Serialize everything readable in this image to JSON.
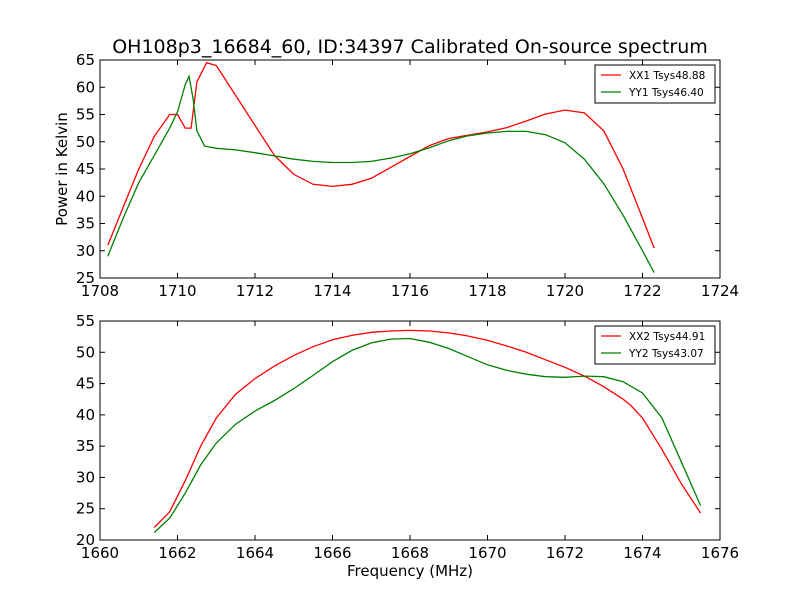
{
  "title": "OH108p3_16684_60, ID:34397 Calibrated On-source spectrum",
  "chart_data": [
    {
      "type": "line",
      "xlabel": "",
      "ylabel": "Power in Kelvin",
      "xlim": [
        1708,
        1724
      ],
      "ylim": [
        25,
        65
      ],
      "xticks": [
        "1708",
        "1710",
        "1712",
        "1714",
        "1716",
        "1718",
        "1720",
        "1722",
        "1724"
      ],
      "yticks": [
        "25",
        "30",
        "35",
        "40",
        "45",
        "50",
        "55",
        "60",
        "65"
      ],
      "legend_position": "top-right",
      "grid": false,
      "series": [
        {
          "name": "XX1 Tsys48.88",
          "color": "#ff0000",
          "points": [
            [
              1708.2,
              31
            ],
            [
              1708.6,
              38
            ],
            [
              1709.0,
              45
            ],
            [
              1709.4,
              51
            ],
            [
              1709.8,
              55
            ],
            [
              1710.0,
              55
            ],
            [
              1710.2,
              52.5
            ],
            [
              1710.35,
              52.5
            ],
            [
              1710.5,
              61
            ],
            [
              1710.75,
              64.5
            ],
            [
              1711.0,
              64
            ],
            [
              1711.5,
              58.5
            ],
            [
              1712.0,
              53
            ],
            [
              1712.5,
              47.5
            ],
            [
              1713.0,
              44
            ],
            [
              1713.5,
              42.2
            ],
            [
              1714.0,
              41.8
            ],
            [
              1714.5,
              42.2
            ],
            [
              1715.0,
              43.3
            ],
            [
              1715.5,
              45.3
            ],
            [
              1716.0,
              47.3
            ],
            [
              1716.5,
              49.3
            ],
            [
              1717.0,
              50.6
            ],
            [
              1717.5,
              51.2
            ],
            [
              1718.0,
              51.8
            ],
            [
              1718.5,
              52.6
            ],
            [
              1719.0,
              53.8
            ],
            [
              1719.5,
              55.1
            ],
            [
              1720.0,
              55.8
            ],
            [
              1720.5,
              55.3
            ],
            [
              1721.0,
              52
            ],
            [
              1721.5,
              45
            ],
            [
              1722.0,
              36
            ],
            [
              1722.3,
              30.5
            ]
          ]
        },
        {
          "name": "YY1 Tsys46.40",
          "color": "#008000",
          "points": [
            [
              1708.2,
              29
            ],
            [
              1708.6,
              36
            ],
            [
              1709.0,
              42.5
            ],
            [
              1709.4,
              47.5
            ],
            [
              1709.8,
              52.5
            ],
            [
              1710.0,
              55.5
            ],
            [
              1710.2,
              60.5
            ],
            [
              1710.3,
              62
            ],
            [
              1710.4,
              58
            ],
            [
              1710.5,
              52
            ],
            [
              1710.7,
              49.2
            ],
            [
              1711.0,
              48.8
            ],
            [
              1711.5,
              48.5
            ],
            [
              1712.0,
              48
            ],
            [
              1712.5,
              47.4
            ],
            [
              1713.0,
              46.8
            ],
            [
              1713.5,
              46.4
            ],
            [
              1714.0,
              46.2
            ],
            [
              1714.5,
              46.2
            ],
            [
              1715.0,
              46.4
            ],
            [
              1715.5,
              47.0
            ],
            [
              1716.0,
              47.8
            ],
            [
              1716.5,
              48.9
            ],
            [
              1717.0,
              50.2
            ],
            [
              1717.5,
              51.1
            ],
            [
              1718.0,
              51.6
            ],
            [
              1718.5,
              51.9
            ],
            [
              1719.0,
              51.9
            ],
            [
              1719.5,
              51.3
            ],
            [
              1720.0,
              49.8
            ],
            [
              1720.5,
              46.8
            ],
            [
              1721.0,
              42.3
            ],
            [
              1721.5,
              36.5
            ],
            [
              1722.0,
              30
            ],
            [
              1722.3,
              26
            ]
          ]
        }
      ]
    },
    {
      "type": "line",
      "xlabel": "Frequency (MHz)",
      "ylabel": "",
      "xlim": [
        1660,
        1676
      ],
      "ylim": [
        20,
        55
      ],
      "xticks": [
        "1660",
        "1662",
        "1664",
        "1666",
        "1668",
        "1670",
        "1672",
        "1674",
        "1676"
      ],
      "yticks": [
        "20",
        "25",
        "30",
        "35",
        "40",
        "45",
        "50",
        "55"
      ],
      "legend_position": "top-right",
      "grid": false,
      "series": [
        {
          "name": "XX2 Tsys44.91",
          "color": "#ff0000",
          "points": [
            [
              1661.4,
              22
            ],
            [
              1661.8,
              24.5
            ],
            [
              1662.2,
              29.5
            ],
            [
              1662.6,
              35
            ],
            [
              1663.0,
              39.5
            ],
            [
              1663.5,
              43.3
            ],
            [
              1664.0,
              45.8
            ],
            [
              1664.5,
              47.8
            ],
            [
              1665.0,
              49.5
            ],
            [
              1665.5,
              50.9
            ],
            [
              1666.0,
              52
            ],
            [
              1666.5,
              52.7
            ],
            [
              1667.0,
              53.2
            ],
            [
              1667.5,
              53.4
            ],
            [
              1668.0,
              53.5
            ],
            [
              1668.5,
              53.4
            ],
            [
              1669.0,
              53.1
            ],
            [
              1669.5,
              52.6
            ],
            [
              1670.0,
              51.9
            ],
            [
              1670.5,
              51.0
            ],
            [
              1671.0,
              50.0
            ],
            [
              1671.5,
              48.8
            ],
            [
              1672.0,
              47.6
            ],
            [
              1672.5,
              46.2
            ],
            [
              1673.0,
              44.5
            ],
            [
              1673.5,
              42.5
            ],
            [
              1673.7,
              41.5
            ],
            [
              1674.0,
              39.5
            ],
            [
              1674.5,
              34.5
            ],
            [
              1675.0,
              29
            ],
            [
              1675.5,
              24.3
            ]
          ]
        },
        {
          "name": "YY2 Tsys43.07",
          "color": "#008000",
          "points": [
            [
              1661.4,
              21.2
            ],
            [
              1661.8,
              23.5
            ],
            [
              1662.2,
              27.5
            ],
            [
              1662.6,
              32
            ],
            [
              1663.0,
              35.5
            ],
            [
              1663.5,
              38.5
            ],
            [
              1664.0,
              40.6
            ],
            [
              1664.5,
              42.3
            ],
            [
              1665.0,
              44.2
            ],
            [
              1665.5,
              46.3
            ],
            [
              1666.0,
              48.5
            ],
            [
              1666.5,
              50.3
            ],
            [
              1667.0,
              51.5
            ],
            [
              1667.5,
              52.1
            ],
            [
              1668.0,
              52.2
            ],
            [
              1668.5,
              51.6
            ],
            [
              1669.0,
              50.6
            ],
            [
              1669.5,
              49.3
            ],
            [
              1670.0,
              48.0
            ],
            [
              1670.5,
              47.1
            ],
            [
              1671.0,
              46.5
            ],
            [
              1671.5,
              46.1
            ],
            [
              1672.0,
              46.0
            ],
            [
              1672.5,
              46.2
            ],
            [
              1673.0,
              46.1
            ],
            [
              1673.5,
              45.3
            ],
            [
              1674.0,
              43.5
            ],
            [
              1674.5,
              39.5
            ],
            [
              1675.0,
              32.5
            ],
            [
              1675.5,
              25.5
            ]
          ]
        }
      ]
    }
  ]
}
